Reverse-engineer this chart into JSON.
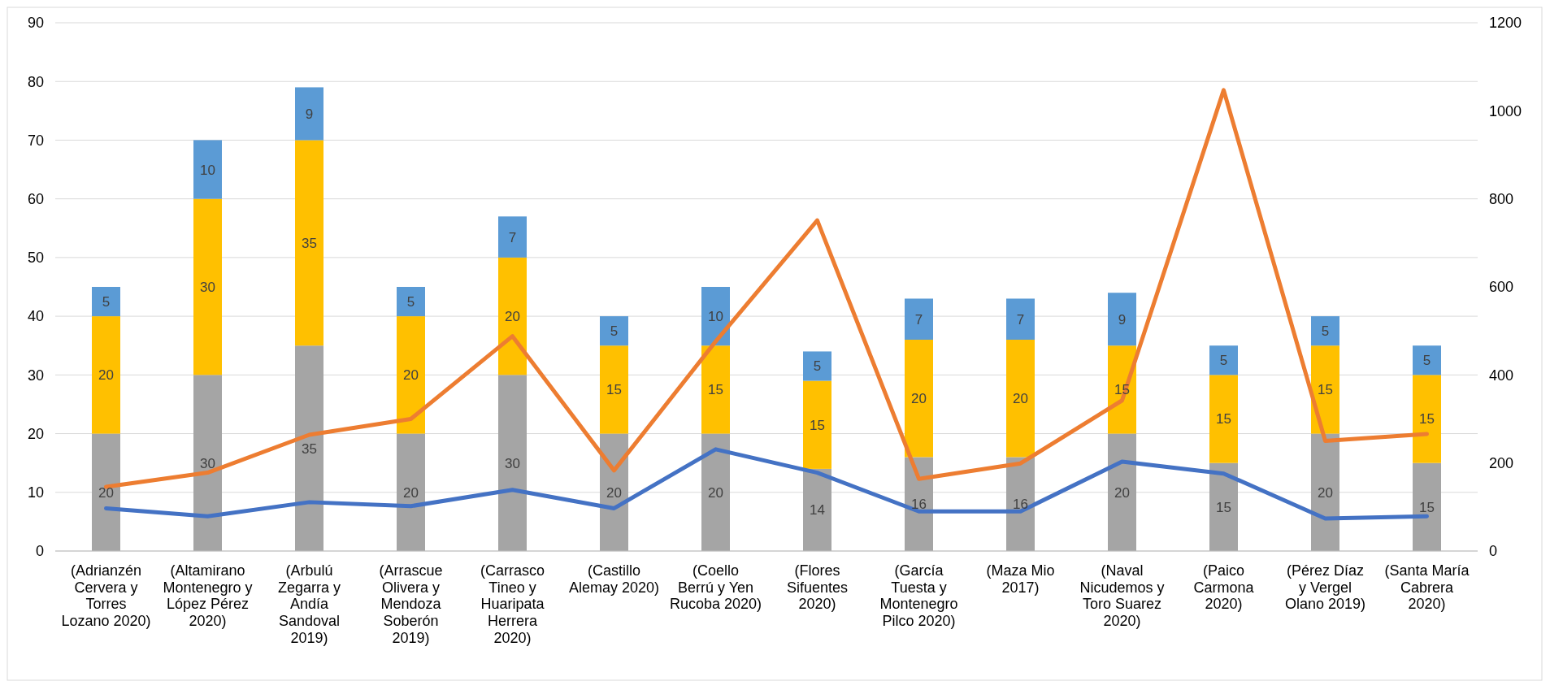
{
  "chart_data": {
    "type": "bar",
    "stacked": true,
    "grid": "y",
    "categories": [
      "(Adrianzén Cervera y Torres Lozano 2020)",
      "(Altamirano Montenegro y López Pérez 2020)",
      "(Arbulú Zegarra y Andía Sandoval 2019)",
      "(Arrascue Olivera y Mendoza Soberón 2019)",
      "(Carrasco Tineo y Huaripata Herrera 2020)",
      "(Castillo Alemay 2020)",
      "(Coello Berrú y Yen Rucoba 2020)",
      "(Flores Sifuentes 2020)",
      "(García Tuesta y Montenegro Pilco 2020)",
      "(Maza Mio 2017)",
      "(Naval Nicudemos y Toro Suarez 2020)",
      "(Paico Carmona 2020)",
      "(Pérez Díaz y Vergel Olano 2019)",
      "(Santa María Cabrera 2020)"
    ],
    "ylim": [
      0,
      90
    ],
    "yticks": [
      0,
      10,
      20,
      30,
      40,
      50,
      60,
      70,
      80,
      90
    ],
    "y2lim": [
      0,
      1200
    ],
    "y2ticks": [
      0,
      200,
      400,
      600,
      800,
      1000,
      1200
    ],
    "series": [
      {
        "color": "#a5a5a5",
        "values": [
          20,
          30,
          35,
          20,
          30,
          20,
          20,
          14,
          16,
          16,
          20,
          15,
          20,
          15
        ],
        "value_labels": [
          "20",
          "30",
          "35",
          "20",
          "30",
          "20",
          "20",
          "14",
          "16",
          "16",
          "20",
          "15",
          "20",
          "15"
        ]
      },
      {
        "color": "#ffc000",
        "values": [
          20,
          30,
          35,
          20,
          20,
          15,
          15,
          15,
          20,
          20,
          15,
          15,
          15,
          15
        ],
        "value_labels": [
          "20",
          "30",
          "35",
          "20",
          "20",
          "15",
          "15",
          "15",
          "20",
          "20",
          "15",
          "15",
          "15",
          "15"
        ]
      },
      {
        "color": "#5b9bd5",
        "values": [
          5,
          10,
          9,
          5,
          7,
          5,
          10,
          5,
          7,
          7,
          9,
          5,
          5,
          5
        ],
        "value_labels": [
          "5",
          "10",
          "9",
          "5",
          "7",
          "5",
          "10",
          "5",
          "7",
          "7",
          "9",
          "5",
          "5",
          "5"
        ]
      },
      {
        "type": "line",
        "axis": "y2",
        "color": "#ed7d31",
        "values": [
          146,
          178,
          264,
          300,
          488,
          183,
          476,
          751,
          164,
          199,
          342,
          1047,
          250,
          266
        ]
      },
      {
        "type": "line",
        "axis": "y2",
        "color": "#4472c4",
        "values": [
          97,
          79,
          111,
          102,
          139,
          97,
          231,
          178,
          90,
          90,
          203,
          176,
          74,
          79
        ]
      }
    ]
  }
}
